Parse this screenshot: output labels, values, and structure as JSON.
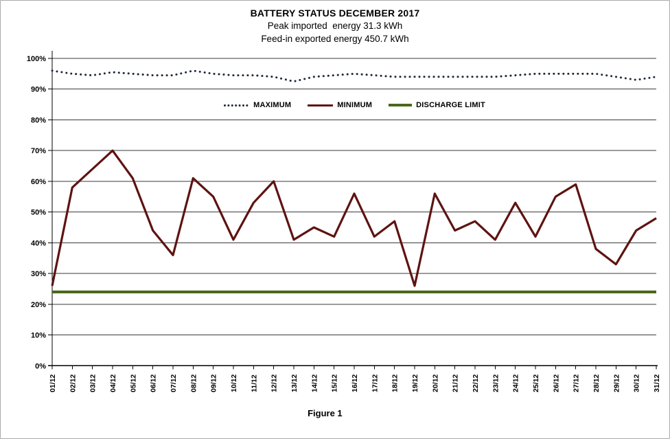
{
  "header": {
    "title": "BATTERY STATUS DECEMBER 2017",
    "subtitle1": "Peak imported  energy 31.3 kWh",
    "subtitle2": "Feed-in exported energy 450.7 kWh"
  },
  "caption": "Figure 1",
  "legend": {
    "items": [
      {
        "label": "MAXIMUM",
        "swatch": "dotted-line"
      },
      {
        "label": "MINIMUM",
        "swatch": "solid-line"
      },
      {
        "label": "DISCHARGE LIMIT",
        "swatch": "solid-line"
      }
    ]
  },
  "colors": {
    "maximum_line": "#1e2936",
    "minimum_line": "#5e1311",
    "discharge_limit_line": "#4c661c",
    "gridline": "#3a3a3a",
    "axis": "#000000",
    "text": "#000000"
  },
  "chart_data": {
    "type": "line",
    "title": "BATTERY STATUS DECEMBER 2017",
    "xlabel": "",
    "ylabel": "",
    "ylim": [
      0,
      100
    ],
    "grid": "horizontal",
    "legend_position": "inside-top",
    "y_tick_labels": [
      "0%",
      "10%",
      "20%",
      "30%",
      "40%",
      "50%",
      "60%",
      "70%",
      "80%",
      "90%",
      "100%"
    ],
    "x_labels": [
      "01/12",
      "02/12",
      "03/12",
      "04/12",
      "05/12",
      "06/12",
      "07/12",
      "08/12",
      "09/12",
      "10/12",
      "11/12",
      "12/12",
      "13/12",
      "14/12",
      "15/12",
      "16/12",
      "17/12",
      "18/12",
      "19/12",
      "20/12",
      "21/12",
      "22/12",
      "23/12",
      "24/12",
      "25/12",
      "26/12",
      "27/12",
      "28/12",
      "29/12",
      "30/12",
      "31/12"
    ],
    "series": [
      {
        "name": "MAXIMUM",
        "style": "dotted",
        "color": "#1e2936",
        "values": [
          96,
          95,
          94.5,
          95.5,
          95,
          94.5,
          94.5,
          96,
          95,
          94.5,
          94.5,
          94,
          92.5,
          94,
          94.5,
          95,
          94.5,
          94,
          94,
          94,
          94,
          94,
          94,
          94.5,
          95,
          95,
          95,
          95,
          94,
          93,
          94
        ]
      },
      {
        "name": "MINIMUM",
        "style": "solid",
        "color": "#5e1311",
        "values": [
          26,
          58,
          64,
          70,
          61,
          44,
          36,
          61,
          55,
          41,
          53,
          60,
          41,
          45,
          42,
          56,
          42,
          47,
          26,
          56,
          44,
          47,
          41,
          53,
          42,
          55,
          59,
          38,
          33,
          44,
          48
        ]
      },
      {
        "name": "DISCHARGE LIMIT",
        "style": "solid-constant",
        "color": "#4c661c",
        "constant_value": 24
      }
    ]
  }
}
